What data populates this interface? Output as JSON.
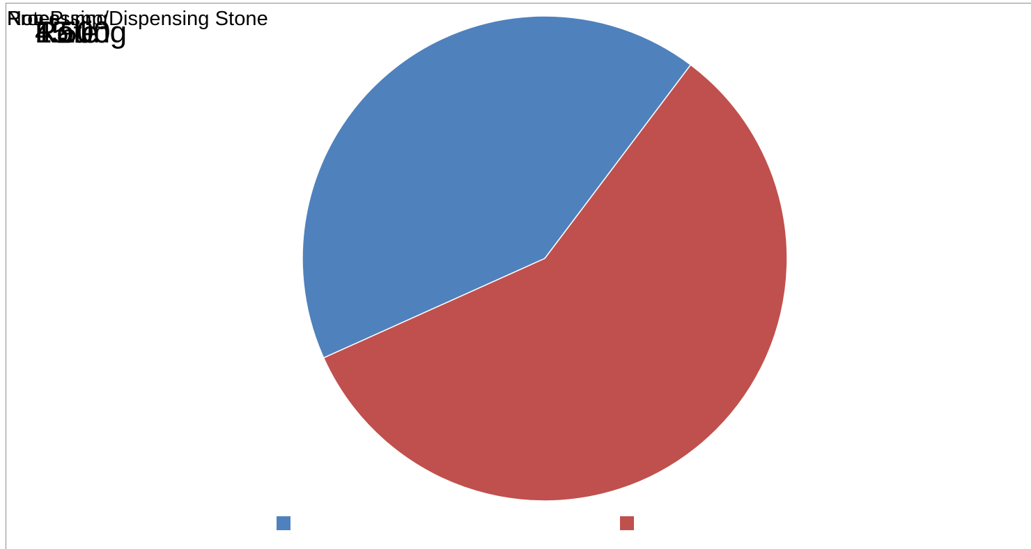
{
  "chart_data": {
    "type": "pie",
    "overlapping_text": {
      "layer_small": [
        "Run Pump/Dispensing Stone",
        "Notes",
        "Processing"
      ],
      "layer_large": [
        "Rate",
        "45.00",
        "1.50",
        "Rolling"
      ]
    },
    "slices": [
      {
        "value": 42,
        "color": "#4f81bd"
      },
      {
        "value": 58,
        "color": "#c0504d"
      }
    ],
    "legend": {
      "placement": "bottom",
      "entries": [
        {
          "color": "#4f81bd"
        },
        {
          "color": "#c0504d"
        }
      ]
    }
  }
}
